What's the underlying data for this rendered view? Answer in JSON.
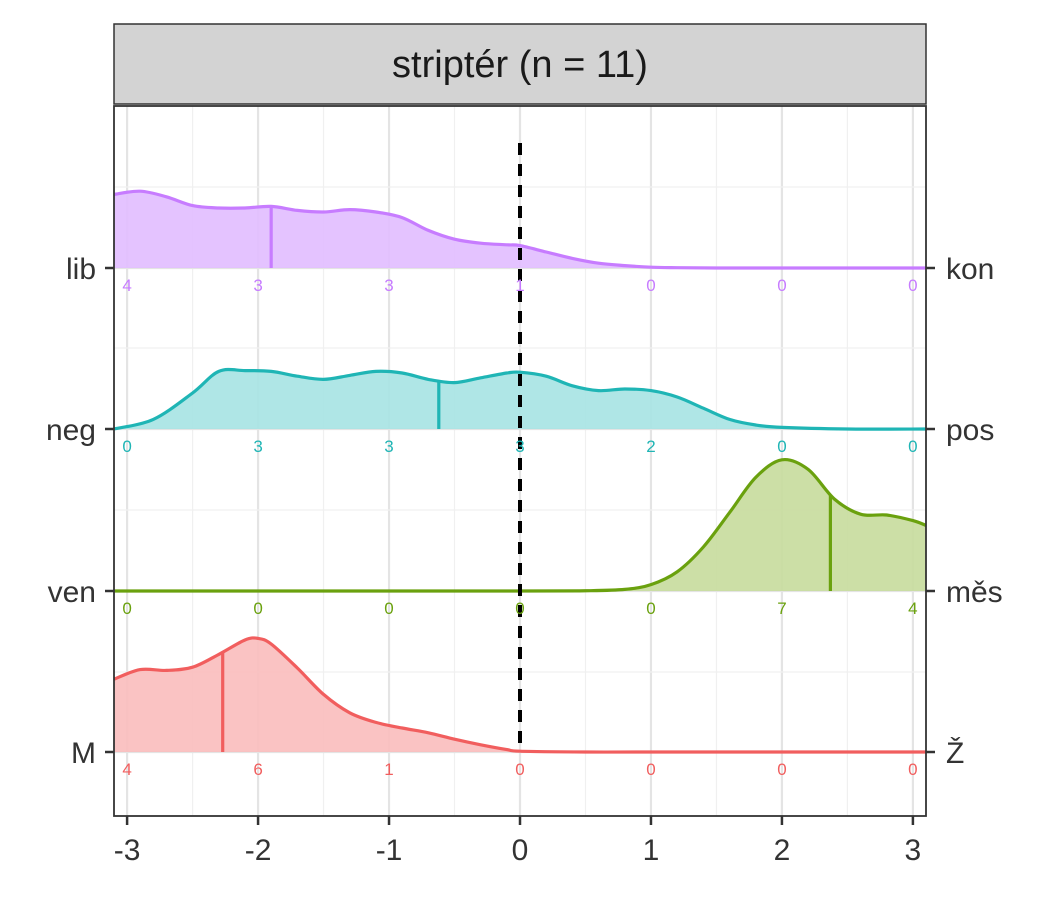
{
  "chart_data": {
    "type": "ridgeline-density",
    "title": "striptér (n = 11)",
    "xlim": [
      -3.1,
      3.1
    ],
    "x_ticks": [
      -3,
      -2,
      -1,
      0,
      1,
      2,
      3
    ],
    "x_tick_labels": [
      "-3",
      "-2",
      "-1",
      "0",
      "1",
      "2",
      "3"
    ],
    "reference_line_x": 0,
    "count_positions": [
      -3,
      -2,
      -1,
      0,
      1,
      2,
      3
    ],
    "series": [
      {
        "left_label": "lib",
        "right_label": "kon",
        "color": "#c77cff",
        "fill": "#e1bcff",
        "median": -1.9,
        "counts": [
          4,
          3,
          3,
          1,
          0,
          0,
          0
        ],
        "density_x": [
          -3.1,
          -2.9,
          -2.7,
          -2.5,
          -2.3,
          -2.1,
          -1.9,
          -1.7,
          -1.5,
          -1.3,
          -1.1,
          -0.9,
          -0.7,
          -0.5,
          -0.3,
          -0.1,
          0.0,
          0.2,
          0.4,
          0.6,
          0.8,
          1.0,
          1.2,
          1.5,
          2.0,
          2.5,
          3.1
        ],
        "density_y": [
          0.92,
          0.96,
          0.89,
          0.78,
          0.75,
          0.75,
          0.77,
          0.72,
          0.7,
          0.73,
          0.7,
          0.63,
          0.47,
          0.36,
          0.31,
          0.29,
          0.28,
          0.2,
          0.12,
          0.06,
          0.03,
          0.01,
          0.004,
          0.0,
          0.0,
          0.0,
          0.0
        ]
      },
      {
        "left_label": "neg",
        "right_label": "pos",
        "color": "#1fb5b5",
        "fill": "#a6e3e3",
        "median": -0.62,
        "counts": [
          0,
          3,
          3,
          3,
          2,
          0,
          0
        ],
        "density_x": [
          -3.1,
          -2.8,
          -2.5,
          -2.3,
          -2.1,
          -1.9,
          -1.7,
          -1.5,
          -1.3,
          -1.1,
          -0.9,
          -0.7,
          -0.5,
          -0.3,
          -0.1,
          0.0,
          0.2,
          0.4,
          0.6,
          0.8,
          1.0,
          1.2,
          1.4,
          1.6,
          1.8,
          2.0,
          2.5,
          3.1
        ],
        "density_y": [
          0.0,
          0.12,
          0.45,
          0.72,
          0.73,
          0.72,
          0.66,
          0.62,
          0.67,
          0.72,
          0.7,
          0.62,
          0.58,
          0.64,
          0.7,
          0.71,
          0.66,
          0.54,
          0.48,
          0.5,
          0.48,
          0.4,
          0.26,
          0.12,
          0.05,
          0.02,
          0.0,
          0.0
        ]
      },
      {
        "left_label": "ven",
        "right_label": "měs",
        "color": "#6aa10e",
        "fill": "#c6dc9c",
        "median": 2.37,
        "counts": [
          0,
          0,
          0,
          0,
          0,
          7,
          4
        ],
        "density_x": [
          -3.1,
          -2.0,
          -1.0,
          0.0,
          0.5,
          0.8,
          1.0,
          1.2,
          1.4,
          1.6,
          1.8,
          2.0,
          2.2,
          2.4,
          2.6,
          2.8,
          3.0,
          3.1
        ],
        "density_y": [
          0.0,
          0.0,
          0.0,
          0.0,
          0.003,
          0.02,
          0.08,
          0.24,
          0.55,
          0.98,
          1.42,
          1.64,
          1.52,
          1.15,
          0.96,
          0.95,
          0.88,
          0.82
        ]
      },
      {
        "left_label": "M",
        "right_label": "Ž",
        "color": "#f15e5e",
        "fill": "#f9bcbc",
        "median": -2.27,
        "counts": [
          4,
          6,
          1,
          0,
          0,
          0,
          0
        ],
        "density_x": [
          -3.1,
          -2.9,
          -2.7,
          -2.5,
          -2.3,
          -2.1,
          -2.0,
          -1.9,
          -1.7,
          -1.5,
          -1.3,
          -1.1,
          -0.9,
          -0.7,
          -0.5,
          -0.3,
          -0.1,
          0.0,
          0.5,
          1.0,
          2.0,
          3.1
        ],
        "density_y": [
          0.91,
          1.03,
          1.02,
          1.06,
          1.22,
          1.4,
          1.42,
          1.35,
          1.05,
          0.72,
          0.49,
          0.37,
          0.3,
          0.24,
          0.16,
          0.09,
          0.03,
          0.01,
          0.0,
          0.0,
          0.0,
          0.0
        ]
      }
    ]
  }
}
